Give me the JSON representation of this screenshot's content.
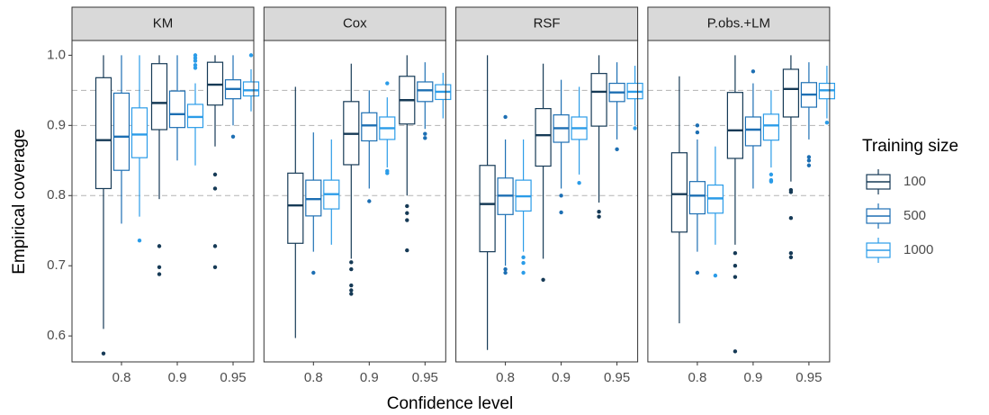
{
  "chart_data": {
    "type": "box",
    "x_label": "Confidence level",
    "y_label": "Empirical coverage",
    "legend_title": "Training size",
    "categories": [
      "0.8",
      "0.9",
      "0.95"
    ],
    "ylim": [
      0.563,
      1.021
    ],
    "yticks": [
      0.6,
      0.7,
      0.8,
      0.9,
      {
        "value": 1.0,
        "label": "1.0"
      }
    ],
    "hlines": [
      0.8,
      0.9,
      0.95
    ],
    "series": [
      {
        "name": "100",
        "color": "#163a56"
      },
      {
        "name": "500",
        "color": "#1d6fb3"
      },
      {
        "name": "1000",
        "color": "#2b9ce8"
      }
    ],
    "facets": [
      {
        "title": "KM",
        "boxes": [
          [
            {
              "whislo": 0.61,
              "q1": 0.81,
              "med": 0.879,
              "q3": 0.968,
              "whishi": 1.0,
              "fliers": [
                0.575
              ]
            },
            {
              "whislo": 0.795,
              "q1": 0.894,
              "med": 0.932,
              "q3": 0.988,
              "whishi": 1.0,
              "fliers": [
                0.728,
                0.698,
                0.688
              ]
            },
            {
              "whislo": 0.87,
              "q1": 0.929,
              "med": 0.958,
              "q3": 0.99,
              "whishi": 1.0,
              "fliers": [
                0.83,
                0.81,
                0.728,
                0.698
              ]
            }
          ],
          [
            {
              "whislo": 0.76,
              "q1": 0.836,
              "med": 0.884,
              "q3": 0.946,
              "whishi": 1.0,
              "fliers": []
            },
            {
              "whislo": 0.85,
              "q1": 0.897,
              "med": 0.916,
              "q3": 0.949,
              "whishi": 1.0,
              "fliers": []
            },
            {
              "whislo": 0.9,
              "q1": 0.938,
              "med": 0.952,
              "q3": 0.965,
              "whishi": 1.0,
              "fliers": [
                0.884
              ]
            }
          ],
          [
            {
              "whislo": 0.77,
              "q1": 0.854,
              "med": 0.887,
              "q3": 0.925,
              "whishi": 1.0,
              "fliers": [
                0.736
              ]
            },
            {
              "whislo": 0.843,
              "q1": 0.897,
              "med": 0.912,
              "q3": 0.93,
              "whishi": 0.96,
              "fliers": [
                0.982,
                0.986,
                0.992,
                0.996,
                1.0
              ]
            },
            {
              "whislo": 0.92,
              "q1": 0.942,
              "med": 0.95,
              "q3": 0.962,
              "whishi": 0.98,
              "fliers": [
                1.0
              ]
            }
          ]
        ]
      },
      {
        "title": "Cox",
        "boxes": [
          [
            {
              "whislo": 0.597,
              "q1": 0.732,
              "med": 0.786,
              "q3": 0.832,
              "whishi": 0.955,
              "fliers": []
            },
            {
              "whislo": 0.71,
              "q1": 0.844,
              "med": 0.888,
              "q3": 0.934,
              "whishi": 0.988,
              "fliers": [
                0.705,
                0.695,
                0.672,
                0.665,
                0.66
              ]
            },
            {
              "whislo": 0.8,
              "q1": 0.902,
              "med": 0.936,
              "q3": 0.97,
              "whishi": 1.0,
              "fliers": [
                0.785,
                0.775,
                0.765,
                0.722
              ]
            }
          ],
          [
            {
              "whislo": 0.72,
              "q1": 0.771,
              "med": 0.795,
              "q3": 0.822,
              "whishi": 0.89,
              "fliers": [
                0.69
              ]
            },
            {
              "whislo": 0.81,
              "q1": 0.878,
              "med": 0.9,
              "q3": 0.918,
              "whishi": 0.95,
              "fliers": [
                0.792
              ]
            },
            {
              "whislo": 0.895,
              "q1": 0.934,
              "med": 0.95,
              "q3": 0.962,
              "whishi": 0.99,
              "fliers": [
                0.888,
                0.882
              ]
            }
          ],
          [
            {
              "whislo": 0.73,
              "q1": 0.781,
              "med": 0.802,
              "q3": 0.822,
              "whishi": 0.88,
              "fliers": []
            },
            {
              "whislo": 0.84,
              "q1": 0.88,
              "med": 0.896,
              "q3": 0.912,
              "whishi": 0.94,
              "fliers": [
                0.96,
                0.835,
                0.832
              ]
            },
            {
              "whislo": 0.91,
              "q1": 0.937,
              "med": 0.948,
              "q3": 0.958,
              "whishi": 0.975,
              "fliers": []
            }
          ]
        ]
      },
      {
        "title": "RSF",
        "boxes": [
          [
            {
              "whislo": 0.58,
              "q1": 0.72,
              "med": 0.788,
              "q3": 0.843,
              "whishi": 1.0,
              "fliers": []
            },
            {
              "whislo": 0.71,
              "q1": 0.842,
              "med": 0.886,
              "q3": 0.924,
              "whishi": 0.988,
              "fliers": [
                0.68
              ]
            },
            {
              "whislo": 0.79,
              "q1": 0.899,
              "med": 0.948,
              "q3": 0.974,
              "whishi": 1.0,
              "fliers": [
                0.777,
                0.77
              ]
            }
          ],
          [
            {
              "whislo": 0.7,
              "q1": 0.773,
              "med": 0.8,
              "q3": 0.825,
              "whishi": 0.88,
              "fliers": [
                0.912,
                0.695,
                0.69
              ]
            },
            {
              "whislo": 0.81,
              "q1": 0.876,
              "med": 0.896,
              "q3": 0.915,
              "whishi": 0.965,
              "fliers": [
                0.8,
                0.776
              ]
            },
            {
              "whislo": 0.88,
              "q1": 0.934,
              "med": 0.947,
              "q3": 0.96,
              "whishi": 0.99,
              "fliers": [
                0.866
              ]
            }
          ],
          [
            {
              "whislo": 0.72,
              "q1": 0.778,
              "med": 0.799,
              "q3": 0.822,
              "whishi": 0.88,
              "fliers": [
                0.712,
                0.704,
                0.69
              ]
            },
            {
              "whislo": 0.83,
              "q1": 0.88,
              "med": 0.896,
              "q3": 0.912,
              "whishi": 0.955,
              "fliers": [
                0.818
              ]
            },
            {
              "whislo": 0.9,
              "q1": 0.938,
              "med": 0.948,
              "q3": 0.96,
              "whishi": 0.985,
              "fliers": [
                0.896
              ]
            }
          ]
        ]
      },
      {
        "title": "P.obs.+LM",
        "boxes": [
          [
            {
              "whislo": 0.618,
              "q1": 0.748,
              "med": 0.802,
              "q3": 0.861,
              "whishi": 0.97,
              "fliers": []
            },
            {
              "whislo": 0.73,
              "q1": 0.853,
              "med": 0.893,
              "q3": 0.947,
              "whishi": 1.0,
              "fliers": [
                0.718,
                0.7,
                0.684,
                0.578
              ]
            },
            {
              "whislo": 0.82,
              "q1": 0.912,
              "med": 0.952,
              "q3": 0.98,
              "whishi": 1.0,
              "fliers": [
                0.808,
                0.805,
                0.768,
                0.718,
                0.712
              ]
            }
          ],
          [
            {
              "whislo": 0.72,
              "q1": 0.774,
              "med": 0.8,
              "q3": 0.82,
              "whishi": 0.88,
              "fliers": [
                0.9,
                0.89,
                0.69
              ]
            },
            {
              "whislo": 0.81,
              "q1": 0.871,
              "med": 0.894,
              "q3": 0.912,
              "whishi": 0.96,
              "fliers": [
                0.977
              ]
            },
            {
              "whislo": 0.88,
              "q1": 0.926,
              "med": 0.944,
              "q3": 0.961,
              "whishi": 0.99,
              "fliers": [
                0.855,
                0.85,
                0.843
              ]
            }
          ],
          [
            {
              "whislo": 0.73,
              "q1": 0.775,
              "med": 0.796,
              "q3": 0.815,
              "whishi": 0.87,
              "fliers": [
                0.686
              ]
            },
            {
              "whislo": 0.84,
              "q1": 0.879,
              "med": 0.9,
              "q3": 0.916,
              "whishi": 0.95,
              "fliers": [
                0.83,
                0.822,
                0.82
              ]
            },
            {
              "whislo": 0.91,
              "q1": 0.938,
              "med": 0.95,
              "q3": 0.96,
              "whishi": 0.985,
              "fliers": [
                0.904
              ]
            }
          ]
        ]
      }
    ]
  }
}
